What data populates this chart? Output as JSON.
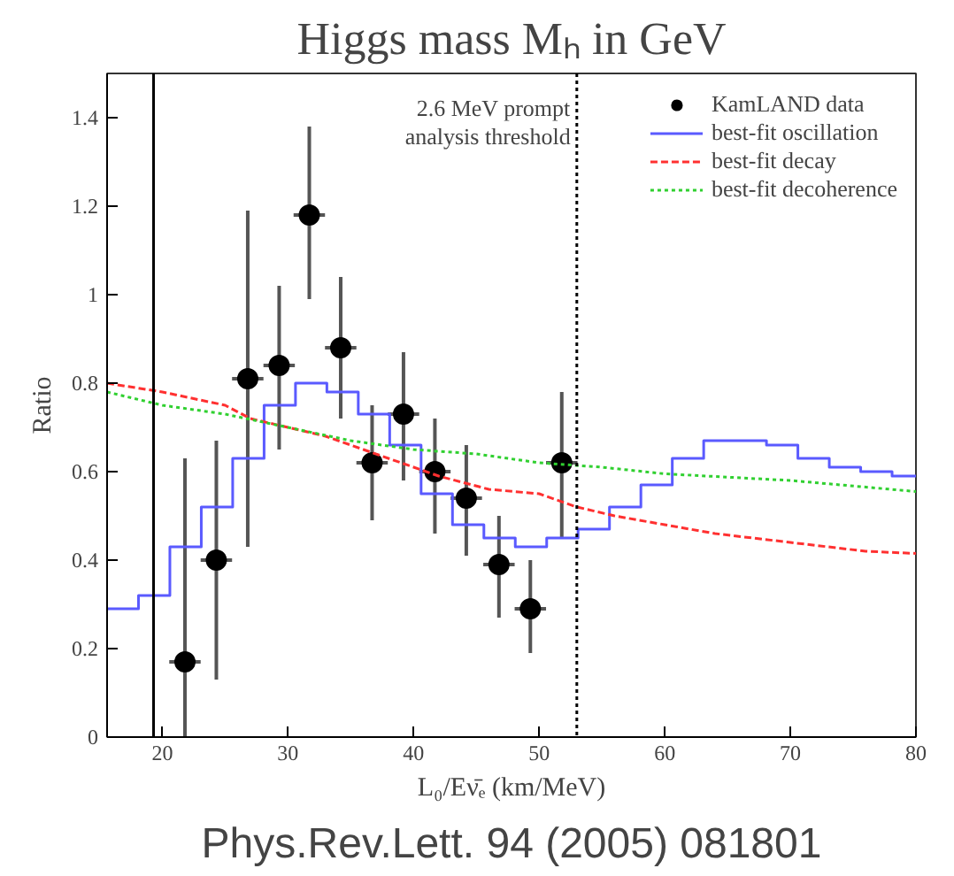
{
  "chart_data": {
    "type": "scatter",
    "title": "Higgs mass Mₕ in GeV",
    "xlabel": "L₀/Eν̄ₑ (km/MeV)",
    "ylabel": "Ratio",
    "annotations": [
      "Phys.Rev.Lett. 94 (2005) 081801"
    ],
    "xlim": [
      15.6,
      80
    ],
    "ylim": [
      0,
      1.5
    ],
    "xticks": [
      20,
      30,
      40,
      50,
      60,
      70,
      80
    ],
    "yticks": [
      0,
      0.2,
      0.4,
      0.6,
      0.8,
      1,
      1.2,
      1.4
    ],
    "grid": false,
    "legend": "top right",
    "series": [
      {
        "name": "KamLAND data",
        "marker": "circle",
        "color": "#000000",
        "x": [
          21.8,
          24.3,
          26.8,
          29.3,
          31.7,
          34.2,
          36.7,
          39.2,
          41.7,
          44.2,
          46.8,
          49.3,
          51.8
        ],
        "values": [
          0.17,
          0.4,
          0.81,
          0.84,
          1.18,
          0.88,
          0.62,
          0.73,
          0.6,
          0.54,
          0.39,
          0.29,
          0.62
        ],
        "errors": [
          [
            0,
            0.63
          ],
          [
            0.13,
            0.67
          ],
          [
            0.43,
            1.19
          ],
          [
            0.65,
            1.02
          ],
          [
            0.99,
            1.38
          ],
          [
            0.72,
            1.04
          ],
          [
            0.49,
            0.75
          ],
          [
            0.58,
            0.87
          ],
          [
            0.46,
            0.72
          ],
          [
            0.41,
            0.66
          ],
          [
            0.27,
            0.5
          ],
          [
            0.19,
            0.4
          ],
          [
            0.45,
            0.78
          ]
        ],
        "xerrors": [
          1.25,
          1.25,
          1.25,
          1.25,
          1.25,
          1.25,
          1.25,
          1.25,
          1.25,
          1.25,
          1.25,
          1.25,
          1.25
        ]
      },
      {
        "name": "best-fit oscillation",
        "type": "step",
        "line_style": "solid",
        "color": "#5a5aff",
        "x": [
          15.6,
          18.1,
          20.6,
          23.1,
          25.6,
          28.1,
          30.6,
          33.1,
          35.6,
          38.1,
          40.6,
          43.1,
          45.6,
          48.1,
          50.6,
          53.1,
          55.6,
          58.1,
          60.6,
          63.1,
          65.6,
          68.1,
          70.6,
          73.1,
          75.6,
          78.1,
          80
        ],
        "values": [
          0.29,
          0.32,
          0.43,
          0.52,
          0.63,
          0.75,
          0.8,
          0.78,
          0.73,
          0.66,
          0.55,
          0.48,
          0.45,
          0.43,
          0.45,
          0.47,
          0.52,
          0.57,
          0.63,
          0.67,
          0.67,
          0.66,
          0.63,
          0.61,
          0.6,
          0.59,
          0.59
        ]
      },
      {
        "name": "best-fit decay",
        "type": "line",
        "line_style": "dashed",
        "color": "#ff3030",
        "x": [
          15.6,
          20,
          25,
          27,
          30,
          33,
          36,
          39,
          42,
          46,
          50,
          53,
          56,
          60,
          64,
          70,
          76,
          80
        ],
        "values": [
          0.8,
          0.78,
          0.75,
          0.72,
          0.7,
          0.68,
          0.65,
          0.62,
          0.59,
          0.56,
          0.55,
          0.52,
          0.5,
          0.48,
          0.46,
          0.44,
          0.42,
          0.415
        ]
      },
      {
        "name": "best-fit decoherence",
        "type": "line",
        "line_style": "dotted",
        "color": "#30d030",
        "x": [
          15.6,
          20,
          25,
          30,
          35,
          40,
          45,
          50,
          55,
          60,
          70,
          80
        ],
        "values": [
          0.78,
          0.75,
          0.73,
          0.7,
          0.67,
          0.65,
          0.64,
          0.62,
          0.61,
          0.595,
          0.58,
          0.555
        ]
      }
    ],
    "ref_lines": [
      {
        "axis": "x",
        "value": 53,
        "label": "2.6 MeV prompt\nanalysis threshold",
        "line_style": "dotted",
        "color": "#000000"
      },
      {
        "axis": "x",
        "value": 19.3,
        "label": null,
        "line_style": "solid",
        "color": "#000000"
      }
    ]
  }
}
